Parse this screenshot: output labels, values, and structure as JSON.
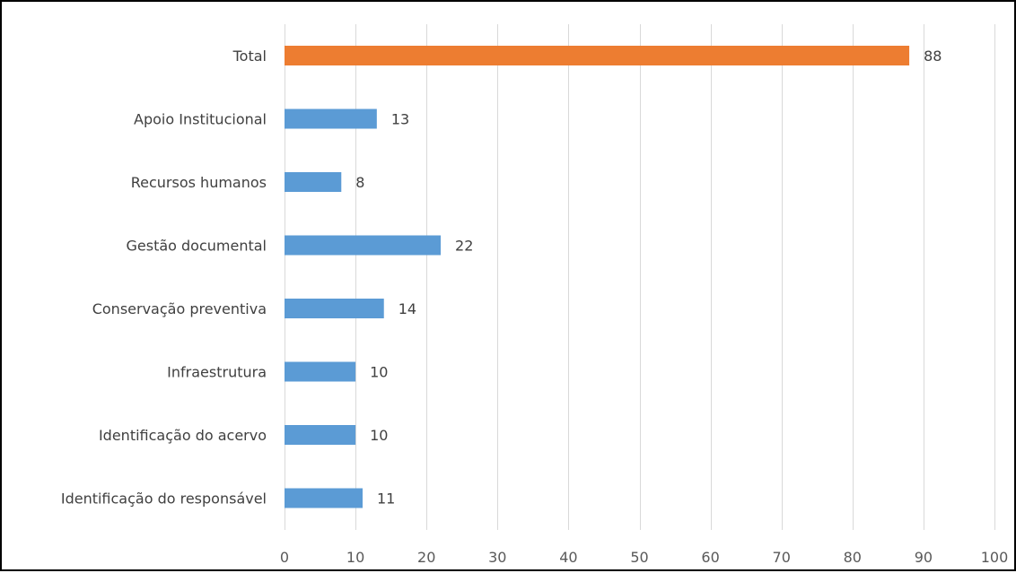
{
  "chart_data": {
    "type": "bar",
    "orientation": "horizontal",
    "categories": [
      "Total",
      "Apoio Institucional",
      "Recursos humanos",
      "Gestão documental",
      "Conservação preventiva",
      "Infraestrutura",
      "Identificação do acervo",
      "Identificação do responsável"
    ],
    "values": [
      88,
      13,
      8,
      22,
      14,
      10,
      10,
      11
    ],
    "bar_colors": [
      "#ED7D31",
      "#5B9BD5",
      "#5B9BD5",
      "#5B9BD5",
      "#5B9BD5",
      "#5B9BD5",
      "#5B9BD5",
      "#5B9BD5"
    ],
    "title": "",
    "xlabel": "",
    "ylabel": "",
    "xlim": [
      0,
      100
    ],
    "xticks": [
      0,
      10,
      20,
      30,
      40,
      50,
      60,
      70,
      80,
      90,
      100
    ],
    "grid": "vertical",
    "legend": "none",
    "data_labels": true,
    "colors": {
      "highlight": "#ED7D31",
      "default": "#5B9BD5",
      "grid": "#D9D9D9",
      "text": "#404040"
    }
  }
}
